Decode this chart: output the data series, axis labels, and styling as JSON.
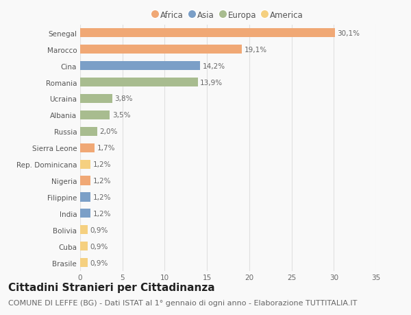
{
  "countries": [
    "Brasile",
    "Cuba",
    "Bolivia",
    "India",
    "Filippine",
    "Nigeria",
    "Rep. Dominicana",
    "Sierra Leone",
    "Russia",
    "Albania",
    "Ucraina",
    "Romania",
    "Cina",
    "Marocco",
    "Senegal"
  ],
  "values": [
    0.9,
    0.9,
    0.9,
    1.2,
    1.2,
    1.2,
    1.2,
    1.7,
    2.0,
    3.5,
    3.8,
    13.9,
    14.2,
    19.1,
    30.1
  ],
  "labels": [
    "0,9%",
    "0,9%",
    "0,9%",
    "1,2%",
    "1,2%",
    "1,2%",
    "1,2%",
    "1,7%",
    "2,0%",
    "3,5%",
    "3,8%",
    "13,9%",
    "14,2%",
    "19,1%",
    "30,1%"
  ],
  "continents": [
    "America",
    "America",
    "America",
    "Asia",
    "Asia",
    "Africa",
    "America",
    "Africa",
    "Europa",
    "Europa",
    "Europa",
    "Europa",
    "Asia",
    "Africa",
    "Africa"
  ],
  "continent_colors": {
    "Africa": "#F0A875",
    "Asia": "#7B9FC7",
    "Europa": "#A8BC8F",
    "America": "#F5D080"
  },
  "legend_order": [
    "Africa",
    "Asia",
    "Europa",
    "America"
  ],
  "title": "Cittadini Stranieri per Cittadinanza",
  "subtitle": "COMUNE DI LEFFE (BG) - Dati ISTAT al 1° gennaio di ogni anno - Elaborazione TUTTITALIA.IT",
  "xlim": [
    0,
    35
  ],
  "xticks": [
    0,
    5,
    10,
    15,
    20,
    25,
    30,
    35
  ],
  "background_color": "#f9f9f9",
  "grid_color": "#e0e0e0",
  "bar_height": 0.55,
  "title_fontsize": 11,
  "subtitle_fontsize": 8,
  "label_fontsize": 7.5,
  "tick_fontsize": 7.5,
  "legend_fontsize": 8.5
}
